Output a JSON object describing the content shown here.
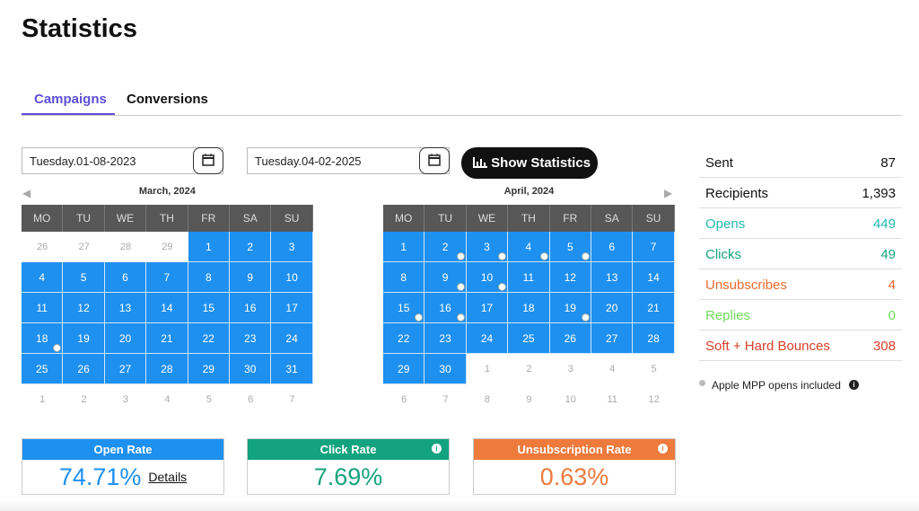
{
  "header": {
    "title": "Statistics"
  },
  "tabs": [
    "Campaigns",
    "Conversions"
  ],
  "date_from": "Tuesday.01-08-2023",
  "date_to": "Tuesday.04-02-2025",
  "button": "Show Statistics",
  "calendars": [
    {
      "month": "March, 2024",
      "weekdays": [
        "MO",
        "TU",
        "WE",
        "TH",
        "FR",
        "SA",
        "SU"
      ],
      "weeks": [
        [
          26,
          27,
          28,
          29,
          1,
          2,
          3
        ],
        [
          4,
          5,
          6,
          7,
          8,
          9,
          10
        ],
        [
          11,
          12,
          13,
          14,
          15,
          16,
          17
        ],
        [
          18,
          19,
          20,
          21,
          22,
          23,
          24
        ],
        [
          25,
          26,
          27,
          28,
          29,
          30,
          31
        ],
        [
          1,
          2,
          3,
          4,
          5,
          6,
          7
        ]
      ],
      "markers": [
        18
      ]
    },
    {
      "month": "April, 2024",
      "weekdays": [
        "MO",
        "TU",
        "WE",
        "TH",
        "FR",
        "SA",
        "SU"
      ],
      "weeks": [
        [
          1,
          2,
          3,
          4,
          5,
          6,
          7
        ],
        [
          8,
          9,
          10,
          11,
          12,
          13,
          14
        ],
        [
          15,
          16,
          17,
          18,
          19,
          20,
          21
        ],
        [
          22,
          23,
          24,
          25,
          26,
          27,
          28
        ],
        [
          29,
          30,
          1,
          2,
          3,
          4,
          5
        ],
        [
          6,
          7,
          8,
          9,
          10,
          11,
          12
        ]
      ],
      "markers": [
        2,
        3,
        4,
        5,
        9,
        10,
        15,
        16,
        19
      ]
    }
  ],
  "stats": [
    {
      "label": "Sent",
      "value": 87,
      "color": "#111111"
    },
    {
      "label": "Recipients",
      "value": "1,393",
      "color": "#111111"
    },
    {
      "label": "Opens",
      "value": 449,
      "color": "#1fb8b0"
    },
    {
      "label": "Clicks",
      "value": 49,
      "color": "#14a37f"
    },
    {
      "label": "Unsubscribes",
      "value": 4,
      "color": "#ee6a2c"
    },
    {
      "label": "Replies",
      "value": 0,
      "color": "#6fdc5a"
    },
    {
      "label": "Soft + Hard Bounces",
      "value": 308,
      "color": "#d8402b"
    }
  ],
  "note": "Apple MPP opens included",
  "cards": [
    {
      "title": "Open Rate",
      "value": "74.71%",
      "link": "Details",
      "color": "#1e90f0"
    },
    {
      "title": "Click Rate",
      "value": "7.69%",
      "color": "#14a37f"
    },
    {
      "title": "Unsubscription Rate",
      "value": "0.63%",
      "color": "#ee7a3c"
    }
  ]
}
